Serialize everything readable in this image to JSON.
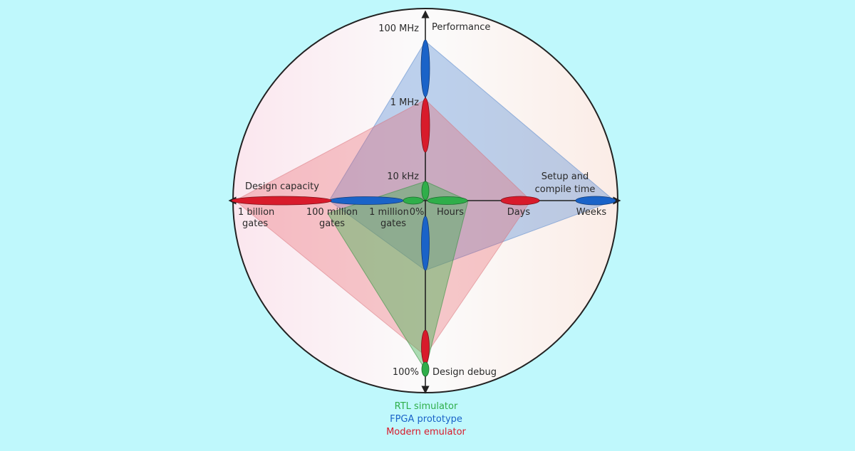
{
  "axes": {
    "performance": {
      "title": "Performance",
      "ticks": [
        "100 MHz",
        "1 MHz",
        "10 kHz"
      ]
    },
    "setup_compile": {
      "title_line1": "Setup and",
      "title_line2": "compile time",
      "ticks": [
        "Hours",
        "Days",
        "Weeks"
      ]
    },
    "design_capacity": {
      "title": "Design capacity",
      "ticks": [
        {
          "line1": "1 billion",
          "line2": "gates"
        },
        {
          "line1": "100 million",
          "line2": "gates"
        },
        {
          "line1": "1 million",
          "line2": "gates"
        }
      ],
      "origin_label": "0%"
    },
    "design_debug": {
      "title": "Design debug",
      "tick": "100%"
    }
  },
  "legend": [
    {
      "label": "RTL simulator",
      "color": "#2fae4a"
    },
    {
      "label": "FPGA prototype",
      "color": "#1a63c8"
    },
    {
      "label": "Modern emulator",
      "color": "#d81b2b"
    }
  ],
  "colors": {
    "background": "#bff8fc",
    "rtl_simulator": "#2fae4a",
    "fpga_prototype": "#1a63c8",
    "modern_emulator": "#d81b2b"
  }
}
